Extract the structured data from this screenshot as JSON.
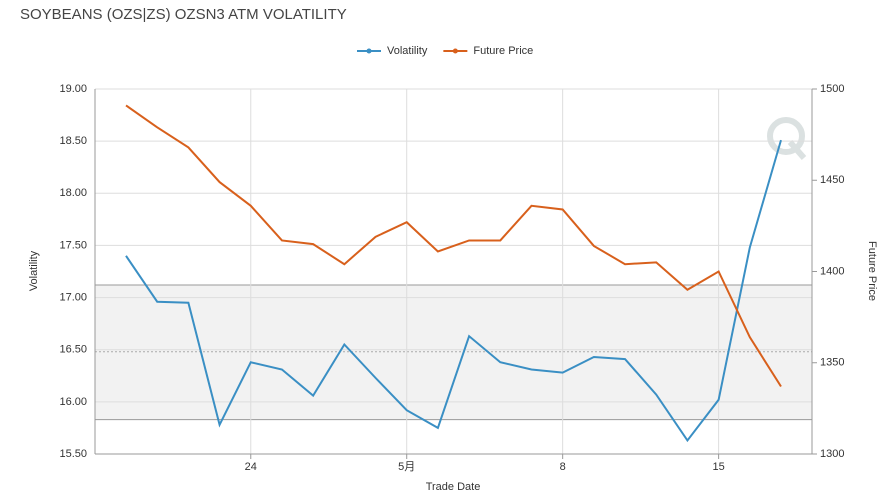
{
  "chart_data": {
    "type": "line",
    "title": "SOYBEANS (OZS|ZS) OZSN3 ATM VOLATILITY",
    "xlabel": "Trade Date",
    "ylabel": "Volatility",
    "y2label": "Future Price",
    "categories": [
      null,
      null,
      null,
      null,
      "24",
      null,
      null,
      null,
      null,
      "5月",
      null,
      null,
      null,
      null,
      "8",
      null,
      null,
      null,
      null,
      "15",
      null,
      null
    ],
    "series": [
      {
        "name": "Volatility",
        "color": "#3a8fc4",
        "axis": "y",
        "values": [
          17.4,
          16.96,
          16.95,
          15.78,
          16.38,
          16.31,
          16.06,
          16.55,
          16.23,
          15.92,
          15.75,
          16.63,
          16.38,
          16.31,
          16.28,
          16.43,
          16.41,
          16.07,
          15.63,
          16.02,
          17.48,
          18.51
        ]
      },
      {
        "name": "Future Price",
        "color": "#d8601c",
        "axis": "y2",
        "values": [
          1491,
          1479,
          1468,
          1449,
          1436,
          1417,
          1415,
          1404,
          1419,
          1427,
          1411,
          1417,
          1417,
          1436,
          1434,
          1414,
          1404,
          1405,
          1390,
          1400,
          1364,
          1337
        ]
      }
    ],
    "ylim": [
      15.5,
      19.0
    ],
    "yticks": [
      {
        "value": 15.5,
        "label": "15.50"
      },
      {
        "value": 16.0,
        "label": "16.00"
      },
      {
        "value": 16.5,
        "label": "16.50"
      },
      {
        "value": 17.0,
        "label": "17.00"
      },
      {
        "value": 17.5,
        "label": "17.50"
      },
      {
        "value": 18.0,
        "label": "18.00"
      },
      {
        "value": 18.5,
        "label": "18.50"
      },
      {
        "value": 19.0,
        "label": "19.00"
      }
    ],
    "y2lim": [
      1300,
      1500
    ],
    "y2ticks": [
      1300,
      1350,
      1400,
      1450,
      1500
    ],
    "band": {
      "lower": 15.83,
      "mean": 16.48,
      "upper": 17.12
    },
    "grid": true,
    "legend": "top"
  }
}
